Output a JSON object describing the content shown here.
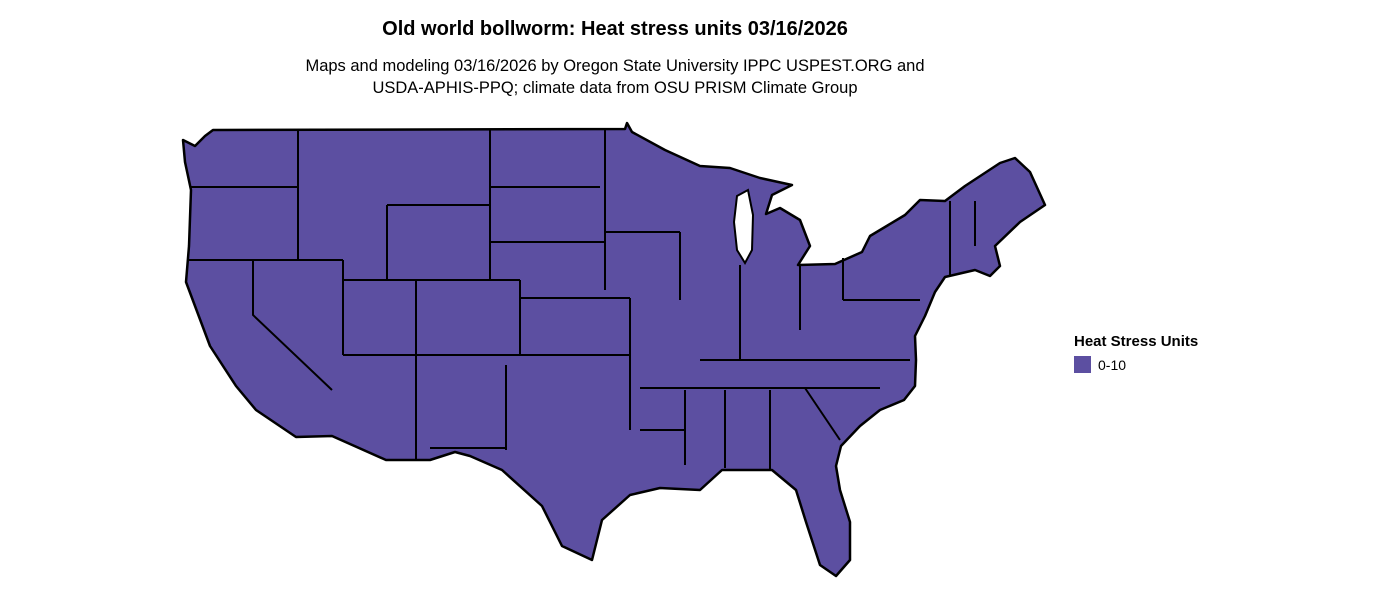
{
  "title": "Old world bollworm: Heat stress units 03/16/2026",
  "subtitle": [
    "Maps and modeling 03/16/2026 by Oregon State University IPPC USPEST.ORG and",
    "USDA-APHIS-PPQ; climate data from OSU PRISM Climate Group"
  ],
  "legend": {
    "title": "Heat Stress Units",
    "items": [
      {
        "label": "0-10",
        "color": "#5c4fa1"
      }
    ]
  },
  "map": {
    "region": "Contiguous United States",
    "fill_color": "#5c4fa1",
    "border_color": "#000000",
    "value_category": "0-10"
  }
}
